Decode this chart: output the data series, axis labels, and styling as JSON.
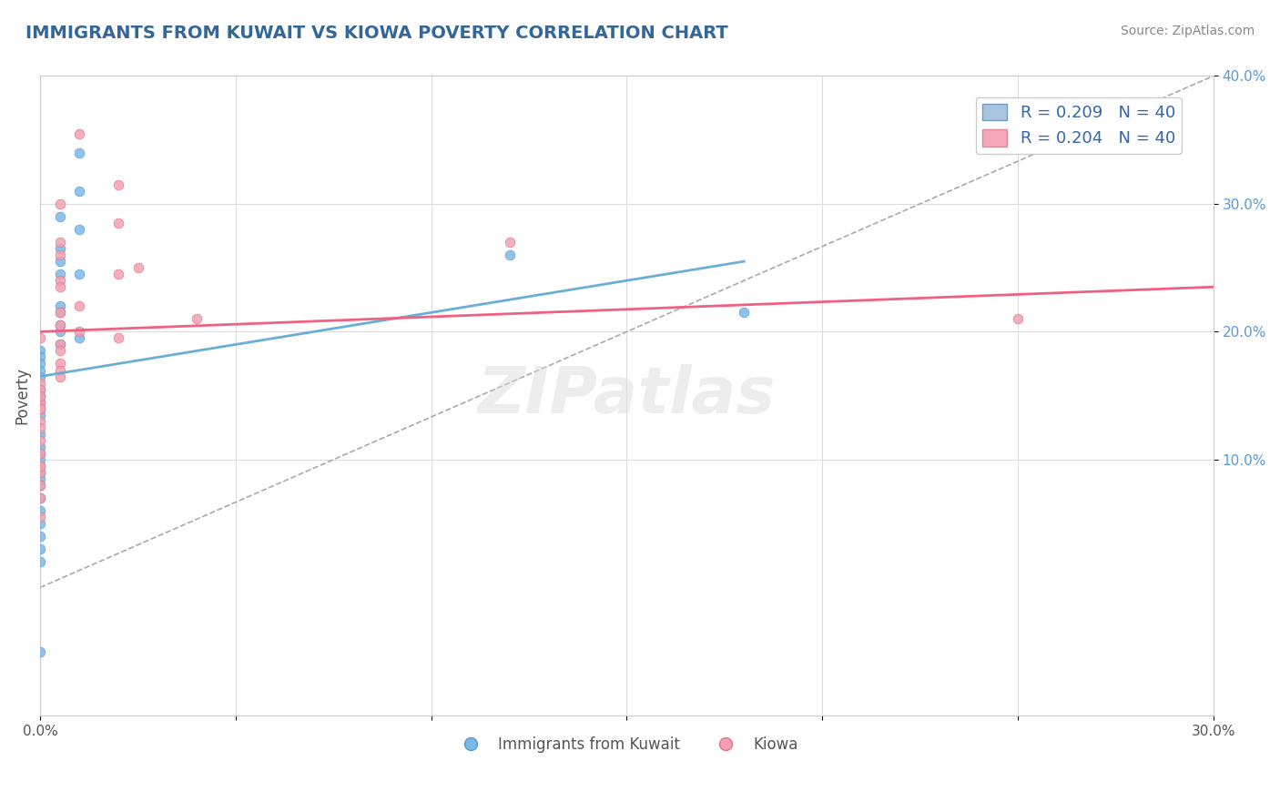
{
  "title": "IMMIGRANTS FROM KUWAIT VS KIOWA POVERTY CORRELATION CHART",
  "source": "Source: ZipAtlas.com",
  "xlabel": "",
  "ylabel": "Poverty",
  "xlim": [
    0.0,
    0.3
  ],
  "ylim": [
    -0.1,
    0.4
  ],
  "xticks": [
    0.0,
    0.05,
    0.1,
    0.15,
    0.2,
    0.25,
    0.3
  ],
  "xticklabels": [
    "0.0%",
    "",
    "",
    "",
    "",
    "",
    "30.0%"
  ],
  "yticks": [
    -0.1,
    -0.05,
    0.0,
    0.05,
    0.1,
    0.15,
    0.2,
    0.25,
    0.3,
    0.35,
    0.4
  ],
  "yticklabels": [
    "",
    "",
    "",
    "",
    "10.0%",
    "",
    "20.0%",
    "",
    "30.0%",
    "",
    "40.0%"
  ],
  "legend_entries": [
    {
      "label": "R = 0.209   N = 40",
      "color": "#a8c4e0"
    },
    {
      "label": "R = 0.204   N = 40",
      "color": "#f4a8b8"
    }
  ],
  "bottom_legend": [
    "Immigrants from Kuwait",
    "Kiowa"
  ],
  "blue_color": "#7db8e8",
  "pink_color": "#f4a0b0",
  "line_blue_color": "#6aaed6",
  "line_pink_color": "#f06080",
  "watermark": "ZIPatlas",
  "blue_scatter_x": [
    0.01,
    0.01,
    0.005,
    0.01,
    0.005,
    0.005,
    0.01,
    0.005,
    0.005,
    0.005,
    0.005,
    0.01,
    0.005,
    0.0,
    0.0,
    0.0,
    0.0,
    0.0,
    0.0,
    0.0,
    0.0,
    0.0,
    0.0,
    0.0,
    0.0,
    0.0,
    0.0,
    0.0,
    0.0,
    0.0,
    0.0,
    0.0,
    0.0,
    0.0,
    0.0,
    0.0,
    0.0,
    0.005,
    0.12,
    0.18
  ],
  "blue_scatter_y": [
    0.34,
    0.31,
    0.29,
    0.28,
    0.265,
    0.255,
    0.245,
    0.22,
    0.215,
    0.205,
    0.2,
    0.195,
    0.19,
    0.185,
    0.18,
    0.175,
    0.17,
    0.165,
    0.155,
    0.15,
    0.145,
    0.14,
    0.135,
    0.12,
    0.11,
    0.105,
    0.1,
    0.09,
    0.085,
    0.08,
    0.07,
    0.06,
    0.05,
    0.04,
    0.03,
    0.02,
    -0.05,
    0.245,
    0.26,
    0.215
  ],
  "pink_scatter_x": [
    0.01,
    0.02,
    0.005,
    0.02,
    0.005,
    0.005,
    0.025,
    0.005,
    0.02,
    0.005,
    0.01,
    0.005,
    0.04,
    0.005,
    0.01,
    0.02,
    0.005,
    0.005,
    0.005,
    0.005,
    0.005,
    0.0,
    0.0,
    0.0,
    0.0,
    0.0,
    0.0,
    0.0,
    0.0,
    0.0,
    0.0,
    0.0,
    0.0,
    0.0,
    0.0,
    0.0,
    0.0,
    0.0,
    0.12,
    0.25
  ],
  "pink_scatter_y": [
    0.355,
    0.315,
    0.3,
    0.285,
    0.27,
    0.26,
    0.25,
    0.24,
    0.245,
    0.235,
    0.22,
    0.215,
    0.21,
    0.205,
    0.2,
    0.195,
    0.19,
    0.185,
    0.175,
    0.17,
    0.165,
    0.16,
    0.155,
    0.145,
    0.14,
    0.13,
    0.125,
    0.115,
    0.105,
    0.095,
    0.09,
    0.08,
    0.07,
    0.055,
    0.15,
    0.195,
    0.14,
    0.095,
    0.27,
    0.21
  ],
  "blue_line_x": [
    0.0,
    0.18
  ],
  "blue_line_y": [
    0.165,
    0.255
  ],
  "pink_line_x": [
    0.0,
    0.3
  ],
  "pink_line_y": [
    0.2,
    0.235
  ],
  "diag_line_x": [
    0.0,
    0.3
  ],
  "diag_line_y": [
    0.0,
    0.4
  ]
}
